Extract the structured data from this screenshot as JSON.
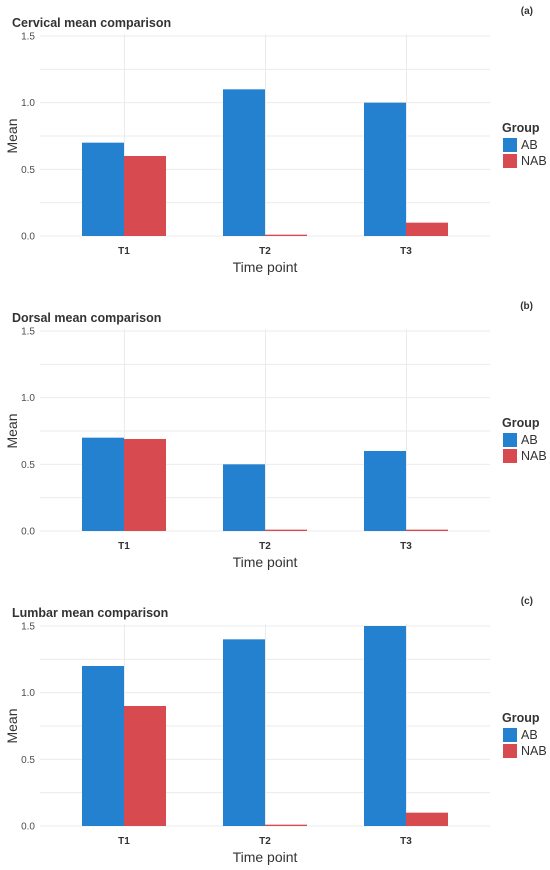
{
  "chart_data": [
    {
      "type": "bar",
      "title": "Cervical mean comparison",
      "tag": "(a)",
      "xlabel": "Time point",
      "ylabel": "Mean",
      "ylim": [
        0,
        1.5
      ],
      "yticks": [
        "0.0",
        "0.5",
        "1.0",
        "1.5"
      ],
      "categories": [
        "T1",
        "T2",
        "T3"
      ],
      "series": [
        {
          "name": "AB",
          "values": [
            0.7,
            1.1,
            1.0
          ]
        },
        {
          "name": "NAB",
          "values": [
            0.6,
            0.01,
            0.1
          ]
        }
      ],
      "legend": {
        "title": "Group",
        "position": "right"
      },
      "grid": true
    },
    {
      "type": "bar",
      "title": "Dorsal mean comparison",
      "tag": "(b)",
      "xlabel": "Time point",
      "ylabel": "Mean",
      "ylim": [
        0,
        1.5
      ],
      "yticks": [
        "0.0",
        "0.5",
        "1.0",
        "1.5"
      ],
      "categories": [
        "T1",
        "T2",
        "T3"
      ],
      "series": [
        {
          "name": "AB",
          "values": [
            0.7,
            0.5,
            0.6
          ]
        },
        {
          "name": "NAB",
          "values": [
            0.69,
            0.01,
            0.01
          ]
        }
      ],
      "legend": {
        "title": "Group",
        "position": "right"
      },
      "grid": true
    },
    {
      "type": "bar",
      "title": "Lumbar mean comparison",
      "tag": "(c)",
      "xlabel": "Time point",
      "ylabel": "Mean",
      "ylim": [
        0,
        1.5
      ],
      "yticks": [
        "0.0",
        "0.5",
        "1.0",
        "1.5"
      ],
      "categories": [
        "T1",
        "T2",
        "T3"
      ],
      "series": [
        {
          "name": "AB",
          "values": [
            1.2,
            1.4,
            1.5
          ]
        },
        {
          "name": "NAB",
          "values": [
            0.9,
            0.01,
            0.1
          ]
        }
      ],
      "legend": {
        "title": "Group",
        "position": "right"
      },
      "grid": true
    }
  ],
  "colors": {
    "AB": "#2381cf",
    "NAB": "#d64a50"
  }
}
